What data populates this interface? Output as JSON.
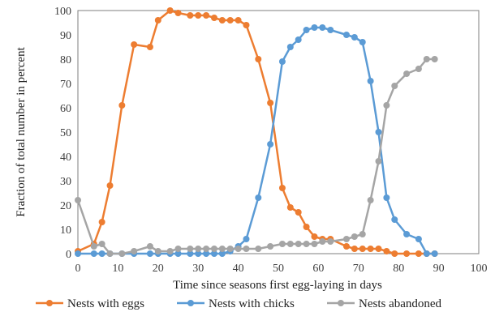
{
  "chart_data": {
    "type": "line",
    "title": "",
    "xlabel": "Time  since seasons first egg-laying in days",
    "ylabel": "Fraction of total number in percent",
    "xlim": [
      0,
      100
    ],
    "ylim": [
      0,
      100
    ],
    "xticks": [
      0,
      10,
      20,
      30,
      40,
      50,
      60,
      70,
      80,
      90,
      100
    ],
    "yticks": [
      0,
      10,
      20,
      30,
      40,
      50,
      60,
      70,
      80,
      90,
      100
    ],
    "grid": false,
    "legend_position": "bottom",
    "series": [
      {
        "name": "Nests with eggs",
        "color": "#ED7D31",
        "points": [
          [
            0,
            1
          ],
          [
            4,
            4
          ],
          [
            6,
            13
          ],
          [
            8,
            28
          ],
          [
            11,
            61
          ],
          [
            14,
            86
          ],
          [
            18,
            85
          ],
          [
            20,
            96
          ],
          [
            23,
            100
          ],
          [
            25,
            99
          ],
          [
            28,
            98
          ],
          [
            30,
            98
          ],
          [
            32,
            98
          ],
          [
            34,
            97
          ],
          [
            36,
            96
          ],
          [
            38,
            96
          ],
          [
            40,
            96
          ],
          [
            42,
            94
          ],
          [
            45,
            80
          ],
          [
            48,
            62
          ],
          [
            51,
            27
          ],
          [
            53,
            19
          ],
          [
            55,
            17
          ],
          [
            57,
            11
          ],
          [
            59,
            7
          ],
          [
            61,
            6
          ],
          [
            63,
            6
          ],
          [
            67,
            3
          ],
          [
            69,
            2
          ],
          [
            71,
            2
          ],
          [
            73,
            2
          ],
          [
            75,
            2
          ],
          [
            77,
            1
          ],
          [
            79,
            0
          ],
          [
            82,
            0
          ],
          [
            85,
            0
          ],
          [
            87,
            0
          ],
          [
            89,
            0
          ]
        ]
      },
      {
        "name": "Nests with chicks",
        "color": "#5B9BD5",
        "points": [
          [
            0,
            0
          ],
          [
            4,
            0
          ],
          [
            6,
            0
          ],
          [
            8,
            0
          ],
          [
            11,
            0
          ],
          [
            14,
            0
          ],
          [
            18,
            0
          ],
          [
            20,
            0
          ],
          [
            23,
            0
          ],
          [
            25,
            0
          ],
          [
            28,
            0
          ],
          [
            30,
            0
          ],
          [
            32,
            0
          ],
          [
            34,
            0
          ],
          [
            36,
            0
          ],
          [
            38,
            1
          ],
          [
            40,
            3
          ],
          [
            42,
            6
          ],
          [
            45,
            23
          ],
          [
            48,
            45
          ],
          [
            51,
            79
          ],
          [
            53,
            85
          ],
          [
            55,
            88
          ],
          [
            57,
            92
          ],
          [
            59,
            93
          ],
          [
            61,
            93
          ],
          [
            63,
            92
          ],
          [
            67,
            90
          ],
          [
            69,
            89
          ],
          [
            71,
            87
          ],
          [
            73,
            71
          ],
          [
            75,
            50
          ],
          [
            77,
            23
          ],
          [
            79,
            14
          ],
          [
            82,
            8
          ],
          [
            85,
            6
          ],
          [
            87,
            0
          ],
          [
            89,
            0
          ]
        ]
      },
      {
        "name": "Nests abandoned",
        "color": "#A5A5A5",
        "points": [
          [
            0,
            22
          ],
          [
            4,
            3
          ],
          [
            6,
            4
          ],
          [
            8,
            0
          ],
          [
            11,
            0
          ],
          [
            14,
            1
          ],
          [
            18,
            3
          ],
          [
            20,
            1
          ],
          [
            23,
            1
          ],
          [
            25,
            2
          ],
          [
            28,
            2
          ],
          [
            30,
            2
          ],
          [
            32,
            2
          ],
          [
            34,
            2
          ],
          [
            36,
            2
          ],
          [
            38,
            2
          ],
          [
            40,
            2
          ],
          [
            42,
            2
          ],
          [
            45,
            2
          ],
          [
            48,
            3
          ],
          [
            51,
            4
          ],
          [
            53,
            4
          ],
          [
            55,
            4
          ],
          [
            57,
            4
          ],
          [
            59,
            4
          ],
          [
            61,
            5
          ],
          [
            63,
            5
          ],
          [
            67,
            6
          ],
          [
            69,
            7
          ],
          [
            71,
            8
          ],
          [
            73,
            22
          ],
          [
            75,
            38
          ],
          [
            77,
            61
          ],
          [
            79,
            69
          ],
          [
            82,
            74
          ],
          [
            85,
            76
          ],
          [
            87,
            80
          ],
          [
            89,
            80
          ]
        ]
      }
    ]
  }
}
